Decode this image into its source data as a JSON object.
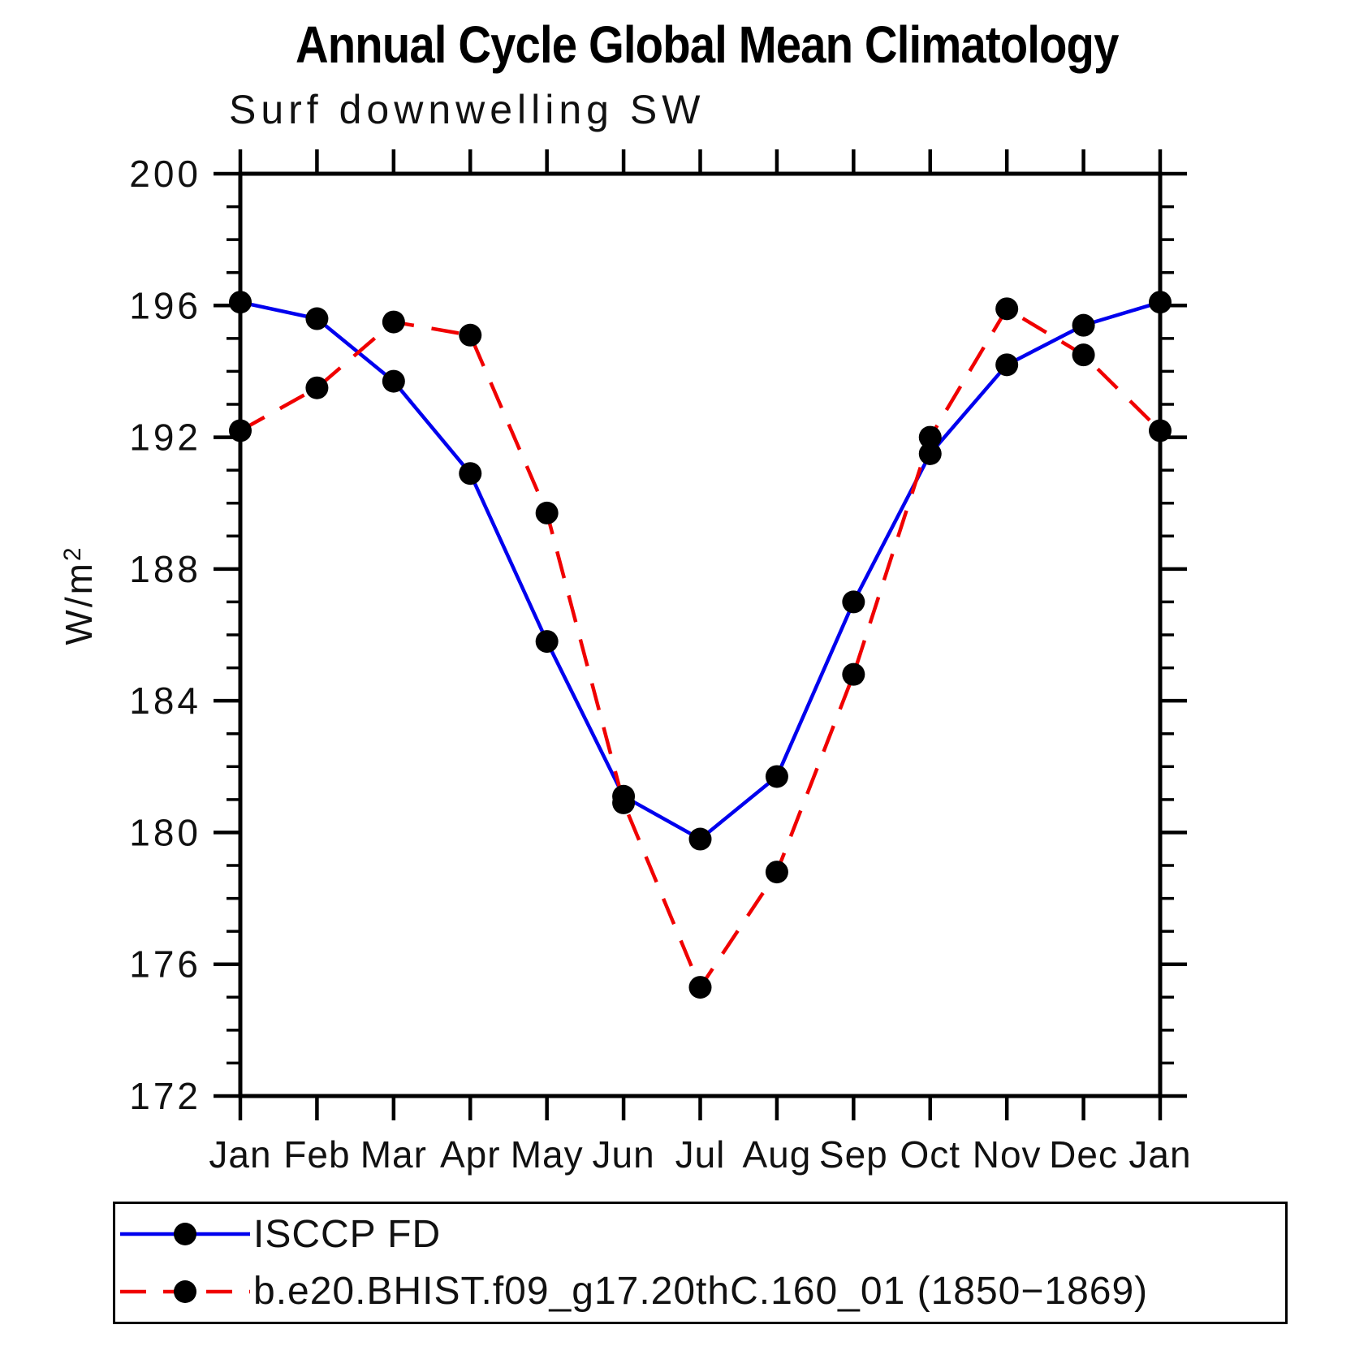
{
  "header": {
    "title": "Annual Cycle Global Mean Climatology",
    "subtitle": "Surf downwelling SW"
  },
  "y_axis": {
    "label_main": "W/m",
    "label_sup": "2",
    "tick_labels": [
      200,
      196,
      192,
      188,
      184,
      180,
      176,
      172
    ]
  },
  "x_axis": {
    "labels": [
      "Jan",
      "Feb",
      "Mar",
      "Apr",
      "May",
      "Jun",
      "Jul",
      "Aug",
      "Sep",
      "Oct",
      "Nov",
      "Dec",
      "Jan"
    ]
  },
  "chart_data": {
    "type": "line",
    "title": "Annual Cycle Global Mean Climatology",
    "subtitle": "Surf downwelling SW",
    "xlabel": "",
    "ylabel": "W/m²",
    "categories": [
      "Jan",
      "Feb",
      "Mar",
      "Apr",
      "May",
      "Jun",
      "Jul",
      "Aug",
      "Sep",
      "Oct",
      "Nov",
      "Dec",
      "Jan"
    ],
    "ylim": [
      172,
      200
    ],
    "ytick_major_step": 4,
    "ytick_minor_step": 1,
    "grid": false,
    "legend_position": "bottom-left-box",
    "series": [
      {
        "name": "ISCCP FD",
        "color": "#0000ee",
        "style": "solid",
        "marker": "circle",
        "marker_color": "#000000",
        "values": [
          196.1,
          195.6,
          193.7,
          190.9,
          185.8,
          181.1,
          179.8,
          181.7,
          187.0,
          191.5,
          194.2,
          195.4,
          196.1
        ]
      },
      {
        "name": "b.e20.BHIST.f09_g17.20thC.160_01 (1850−1869)",
        "color": "#f00000",
        "style": "dashed",
        "marker": "circle",
        "marker_color": "#000000",
        "values": [
          192.2,
          193.5,
          195.5,
          195.1,
          189.7,
          180.9,
          175.3,
          178.8,
          184.8,
          192.0,
          195.9,
          194.5,
          192.2
        ]
      }
    ]
  }
}
